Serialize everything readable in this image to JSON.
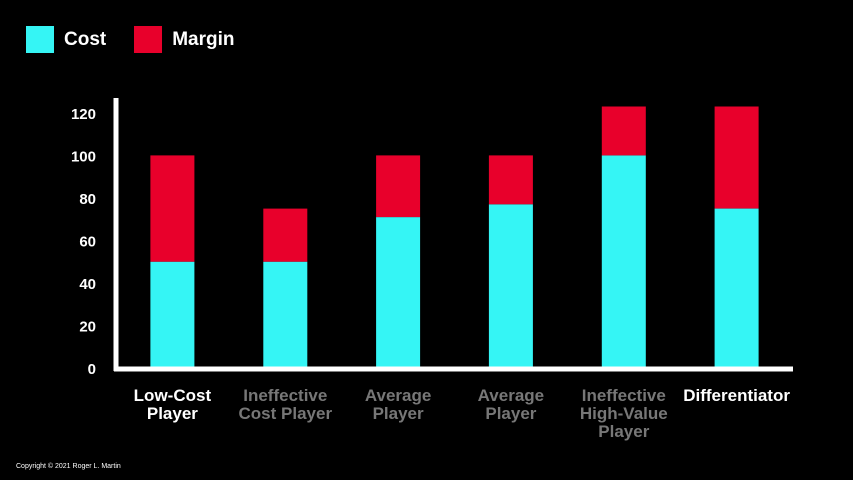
{
  "colors": {
    "background": "#000000",
    "cost": "#35f5f5",
    "margin": "#e8002b",
    "axis": "#ffffff",
    "label_active": "#ffffff",
    "label_muted": "#777777"
  },
  "legend": {
    "items": [
      {
        "label": "Cost",
        "color": "#35f5f5"
      },
      {
        "label": "Margin",
        "color": "#e8002b"
      }
    ]
  },
  "copyright": "Copyright © 2021 Roger L. Martin",
  "chart_data": {
    "type": "bar",
    "stacked": true,
    "categories": [
      {
        "lines": [
          "Low-Cost",
          "Player"
        ],
        "highlighted": true
      },
      {
        "lines": [
          "Ineffective",
          "Cost Player"
        ],
        "highlighted": false
      },
      {
        "lines": [
          "Average",
          "Player"
        ],
        "highlighted": false
      },
      {
        "lines": [
          "Average",
          "Player"
        ],
        "highlighted": false
      },
      {
        "lines": [
          "Ineffective",
          "High-Value",
          "Player"
        ],
        "highlighted": false
      },
      {
        "lines": [
          "Differentiator"
        ],
        "highlighted": true
      }
    ],
    "series": [
      {
        "name": "Cost",
        "color": "#35f5f5",
        "values": [
          50,
          50,
          71,
          77,
          100,
          75
        ]
      },
      {
        "name": "Margin",
        "color": "#e8002b",
        "values": [
          50,
          25,
          29,
          23,
          23,
          48
        ]
      }
    ],
    "yticks": [
      0,
      20,
      40,
      60,
      80,
      100,
      120
    ],
    "ylim": [
      0,
      127
    ],
    "grid": false,
    "legend_position": "top-left"
  }
}
